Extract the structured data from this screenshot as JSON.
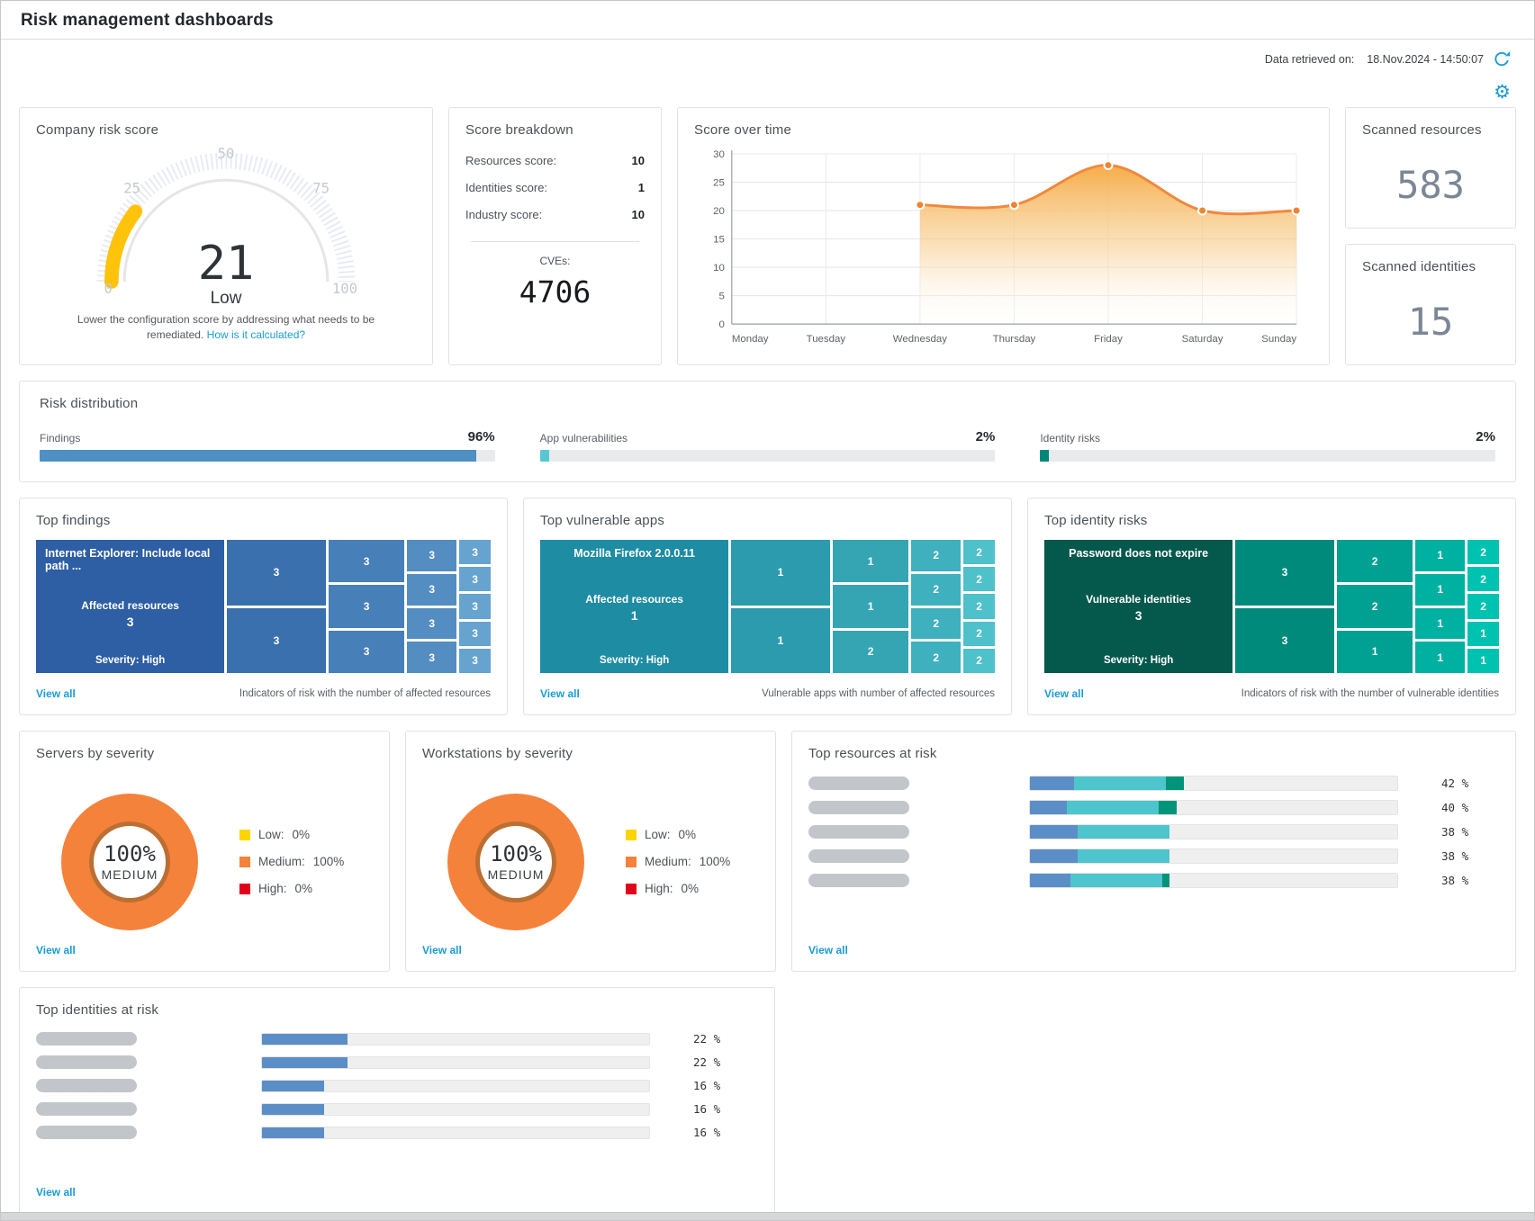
{
  "header": {
    "title": "Risk management dashboards",
    "retrieved_label": "Data retrieved on:",
    "retrieved_value": "18.Nov.2024 - 14:50:07",
    "settings_gear_glyph": "⚙"
  },
  "company_risk_score": {
    "title": "Company risk score",
    "value": 21,
    "max": 100,
    "level": "Low",
    "tick_labels": [
      "0",
      "25",
      "50",
      "75",
      "100"
    ],
    "caption": "Lower the configuration score by addressing what needs to be remediated.",
    "caption_link": "How is it calculated?",
    "arc_color": "#ffc30b"
  },
  "score_breakdown": {
    "title": "Score breakdown",
    "rows": [
      {
        "label": "Resources score:",
        "value": "10"
      },
      {
        "label": "Identities score:",
        "value": "1"
      },
      {
        "label": "Industry score:",
        "value": "10"
      }
    ],
    "cves_label": "CVEs:",
    "cves_value": "4706"
  },
  "chart_data": {
    "type": "area",
    "title": "Score over time",
    "x": [
      "Monday",
      "Tuesday",
      "Wednesday",
      "Thursday",
      "Friday",
      "Saturday",
      "Sunday"
    ],
    "series": [
      {
        "name": "Score",
        "values": [
          null,
          null,
          21,
          21,
          28,
          20,
          20
        ]
      }
    ],
    "ylim": [
      0,
      30
    ],
    "yticks": [
      0,
      5,
      10,
      15,
      20,
      25,
      30
    ],
    "grid": true,
    "legend": "none",
    "line_color": "#f0883e",
    "marker_color": "#ee8434"
  },
  "scanned_resources": {
    "title": "Scanned resources",
    "value": "583"
  },
  "scanned_identities": {
    "title": "Scanned identities",
    "value": "15"
  },
  "risk_distribution": {
    "title": "Risk distribution",
    "items": [
      {
        "label": "Findings",
        "pct_label": "96%",
        "pct": 96,
        "color": "#4f8fc4"
      },
      {
        "label": "App vulnerabilities",
        "pct_label": "2%",
        "pct": 2,
        "color": "#57c7d4"
      },
      {
        "label": "Identity risks",
        "pct_label": "2%",
        "pct": 2,
        "color": "#00877b"
      }
    ]
  },
  "treemaps": [
    {
      "title": "Top findings",
      "big": {
        "name": "Internet Explorer: Include local path ...",
        "center_label": "Affected resources",
        "center_value": "3",
        "severity": "Severity: High"
      },
      "columns": [
        [
          "3",
          "3"
        ],
        [
          "3",
          "3",
          "3"
        ],
        [
          "3",
          "3",
          "3",
          "3"
        ],
        [
          "3",
          "3",
          "3",
          "3",
          "3"
        ]
      ],
      "colors": {
        "big": "#2e5ea3",
        "cols": [
          "#3b70af",
          "#477fb8",
          "#548dc1",
          "#66a3cf"
        ]
      },
      "view_all": "View all",
      "caption": "Indicators of risk with the number of affected resources"
    },
    {
      "title": "Top vulnerable apps",
      "big": {
        "name": "Mozilla Firefox 2.0.0.11",
        "center_label": "Affected resources",
        "center_value": "1",
        "severity": "Severity: High"
      },
      "columns": [
        [
          "1",
          "1"
        ],
        [
          "1",
          "1",
          "2"
        ],
        [
          "2",
          "2",
          "2",
          "2"
        ],
        [
          "2",
          "2",
          "2",
          "2",
          "2"
        ]
      ],
      "colors": {
        "big": "#1e8ca3",
        "cols": [
          "#2b9bad",
          "#35a5b3",
          "#3fb0bd",
          "#4ec1ca"
        ]
      },
      "view_all": "View all",
      "caption": "Vulnerable apps with number of affected resources"
    },
    {
      "title": "Top identity risks",
      "big": {
        "name": "Password does not expire",
        "center_label": "Vulnerable identities",
        "center_value": "3",
        "severity": "Severity: High"
      },
      "columns": [
        [
          "3",
          "3"
        ],
        [
          "2",
          "2",
          "1"
        ],
        [
          "1",
          "1",
          "1",
          "1"
        ],
        [
          "2",
          "2",
          "2",
          "1",
          "1"
        ]
      ],
      "colors": {
        "big": "#04584c",
        "cols": [
          "#008a7c",
          "#00a093",
          "#00b0a0",
          "#00c2b1"
        ]
      },
      "view_all": "View all",
      "caption": "Indicators of risk with the number of vulnerable identities"
    }
  ],
  "severity_cards": [
    {
      "title": "Servers by severity",
      "center_pct": "100%",
      "center_label": "MEDIUM",
      "legend": [
        {
          "label": "Low:",
          "value": "0%",
          "color": "#ffd400"
        },
        {
          "label": "Medium:",
          "value": "100%",
          "color": "#f5823b"
        },
        {
          "label": "High:",
          "value": "0%",
          "color": "#e2001a"
        }
      ],
      "view_all": "View all"
    },
    {
      "title": "Workstations by severity",
      "center_pct": "100%",
      "center_label": "MEDIUM",
      "legend": [
        {
          "label": "Low:",
          "value": "0%",
          "color": "#ffd400"
        },
        {
          "label": "Medium:",
          "value": "100%",
          "color": "#f5823b"
        },
        {
          "label": "High:",
          "value": "0%",
          "color": "#e2001a"
        }
      ],
      "view_all": "View all"
    }
  ],
  "top_resources_at_risk": {
    "title": "Top resources at risk",
    "view_all": "View all",
    "rows": [
      {
        "pct_label": "42 %",
        "segments": [
          {
            "pct": 12,
            "color": "#5b8ec7"
          },
          {
            "pct": 25,
            "color": "#4ec5cc"
          },
          {
            "pct": 5,
            "color": "#00957b"
          }
        ]
      },
      {
        "pct_label": "40 %",
        "segments": [
          {
            "pct": 10,
            "color": "#5b8ec7"
          },
          {
            "pct": 25,
            "color": "#4ec5cc"
          },
          {
            "pct": 5,
            "color": "#00957b"
          }
        ]
      },
      {
        "pct_label": "38 %",
        "segments": [
          {
            "pct": 13,
            "color": "#5b8ec7"
          },
          {
            "pct": 25,
            "color": "#4ec5cc"
          }
        ]
      },
      {
        "pct_label": "38 %",
        "segments": [
          {
            "pct": 13,
            "color": "#5b8ec7"
          },
          {
            "pct": 25,
            "color": "#4ec5cc"
          }
        ]
      },
      {
        "pct_label": "38 %",
        "segments": [
          {
            "pct": 11,
            "color": "#5b8ec7"
          },
          {
            "pct": 25,
            "color": "#4ec5cc"
          },
          {
            "pct": 2,
            "color": "#00957b"
          }
        ]
      }
    ]
  },
  "top_identities_at_risk": {
    "title": "Top identities at risk",
    "view_all": "View all",
    "bar_color": "#5b8ec7",
    "rows": [
      {
        "pct": 22,
        "pct_label": "22 %"
      },
      {
        "pct": 22,
        "pct_label": "22 %"
      },
      {
        "pct": 16,
        "pct_label": "16 %"
      },
      {
        "pct": 16,
        "pct_label": "16 %"
      },
      {
        "pct": 16,
        "pct_label": "16 %"
      }
    ]
  }
}
